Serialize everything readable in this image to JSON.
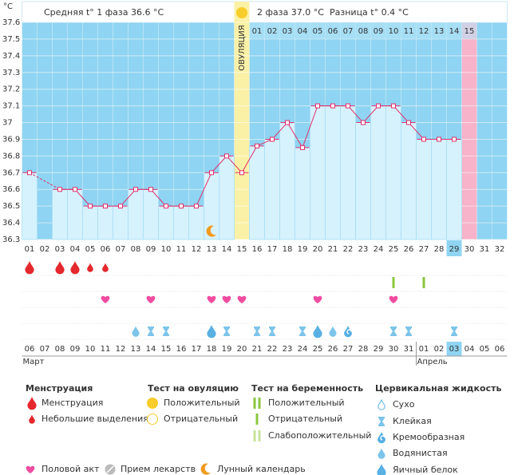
{
  "header": {
    "unit": "°C",
    "phase1": "Средняя t° 1 фаза 36.6 °C",
    "phase2": "2 фаза 37.0 °C",
    "diff": "Разница t° 0.4 °C"
  },
  "ovulation_label": "ОВУЛЯЦИЯ",
  "chart_data": {
    "type": "line",
    "color": "#e0306a",
    "categories": [
      "01",
      "02",
      "03",
      "04",
      "05",
      "06",
      "07",
      "08",
      "09",
      "10",
      "11",
      "12",
      "13",
      "14",
      "15",
      "16",
      "17",
      "18",
      "19",
      "20",
      "21",
      "22",
      "23",
      "24",
      "25",
      "26",
      "27",
      "28",
      "29",
      "30",
      "31",
      "32"
    ],
    "values": [
      36.7,
      null,
      36.6,
      36.6,
      36.5,
      36.5,
      36.5,
      36.6,
      36.6,
      36.5,
      36.5,
      36.5,
      36.7,
      36.8,
      36.7,
      36.86,
      36.9,
      37.0,
      36.85,
      37.1,
      37.1,
      37.1,
      37.0,
      37.1,
      37.1,
      37.0,
      36.9,
      36.9,
      36.9,
      null,
      null,
      null
    ],
    "ylim": [
      36.3,
      37.6
    ],
    "yticks": [
      36.3,
      36.4,
      36.5,
      36.6,
      36.7,
      36.8,
      36.9,
      37,
      37.1,
      37.2,
      37.3,
      37.4,
      37.5,
      37.6
    ],
    "grid": true
  },
  "highlight": {
    "ovulation": 14,
    "today": 28,
    "expected_period": 29
  },
  "phase2_days": [
    "01",
    "02",
    "03",
    "04",
    "05",
    "06",
    "07",
    "08",
    "09",
    "10",
    "11",
    "12",
    "13",
    "14",
    "15"
  ],
  "dates": [
    "06",
    "07",
    "08",
    "09",
    "10",
    "11",
    "12",
    "13",
    "14",
    "15",
    "16",
    "17",
    "18",
    "19",
    "20",
    "21",
    "22",
    "23",
    "24",
    "25",
    "26",
    "27",
    "28",
    "29",
    "30",
    "31",
    "01",
    "02",
    "03",
    "04",
    "05",
    "06"
  ],
  "date_weekend": [
    false,
    true,
    true,
    false,
    false,
    false,
    false,
    false,
    true,
    true,
    false,
    false,
    false,
    false,
    false,
    true,
    true,
    false,
    false,
    false,
    false,
    false,
    true,
    true,
    false,
    false,
    false,
    false,
    false,
    true,
    true,
    false
  ],
  "months": [
    "Март",
    "Апрель"
  ],
  "month_starts": [
    0,
    26
  ],
  "menstruation": [
    0,
    null,
    0,
    0,
    1,
    1,
    null,
    null,
    null,
    null,
    null,
    null,
    null,
    null,
    null,
    null,
    null,
    null,
    null,
    null,
    null,
    null,
    null,
    null,
    null,
    null,
    null,
    null,
    null,
    null,
    null,
    null
  ],
  "pregnancy_test": [
    null,
    null,
    null,
    null,
    null,
    null,
    null,
    null,
    null,
    null,
    null,
    null,
    null,
    null,
    null,
    null,
    null,
    null,
    null,
    null,
    null,
    null,
    null,
    null,
    1,
    null,
    1,
    null,
    null,
    null,
    null,
    null
  ],
  "intercourse": [
    null,
    null,
    null,
    null,
    null,
    true,
    null,
    null,
    true,
    null,
    null,
    null,
    true,
    true,
    true,
    null,
    null,
    null,
    null,
    true,
    null,
    null,
    null,
    null,
    true,
    null,
    null,
    null,
    null,
    null,
    null,
    null
  ],
  "cervical": [
    null,
    null,
    null,
    null,
    null,
    null,
    null,
    3,
    1,
    1,
    null,
    null,
    4,
    1,
    null,
    1,
    1,
    null,
    1,
    4,
    3,
    2,
    null,
    null,
    1,
    1,
    null,
    null,
    1,
    null,
    null,
    null
  ],
  "moon": [
    null,
    null,
    null,
    null,
    null,
    null,
    null,
    null,
    null,
    null,
    null,
    null,
    true,
    null,
    null,
    null,
    null,
    null,
    null,
    null,
    null,
    null,
    null,
    null,
    null,
    null,
    null,
    null,
    null,
    null,
    null,
    null
  ],
  "legend": {
    "menstruation": {
      "title": "Менструация",
      "items": [
        "Менструация",
        "Небольшие выделения"
      ]
    },
    "ovulation_test": {
      "title": "Тест на овуляцию",
      "items": [
        "Положительный",
        "Отрицательный"
      ]
    },
    "pregnancy_test": {
      "title": "Тест на беременность",
      "items": [
        "Положительный",
        "Отрицательный",
        "Слабоположительный"
      ]
    },
    "cervical": {
      "title": "Цервикальная жидкость",
      "items": [
        "Сухо",
        "Клейкая",
        "Кремообразная",
        "Водянистая",
        "Яичный белок"
      ]
    },
    "extra": [
      "Половой акт",
      "Прием лекарств",
      "Лунный календарь"
    ]
  }
}
